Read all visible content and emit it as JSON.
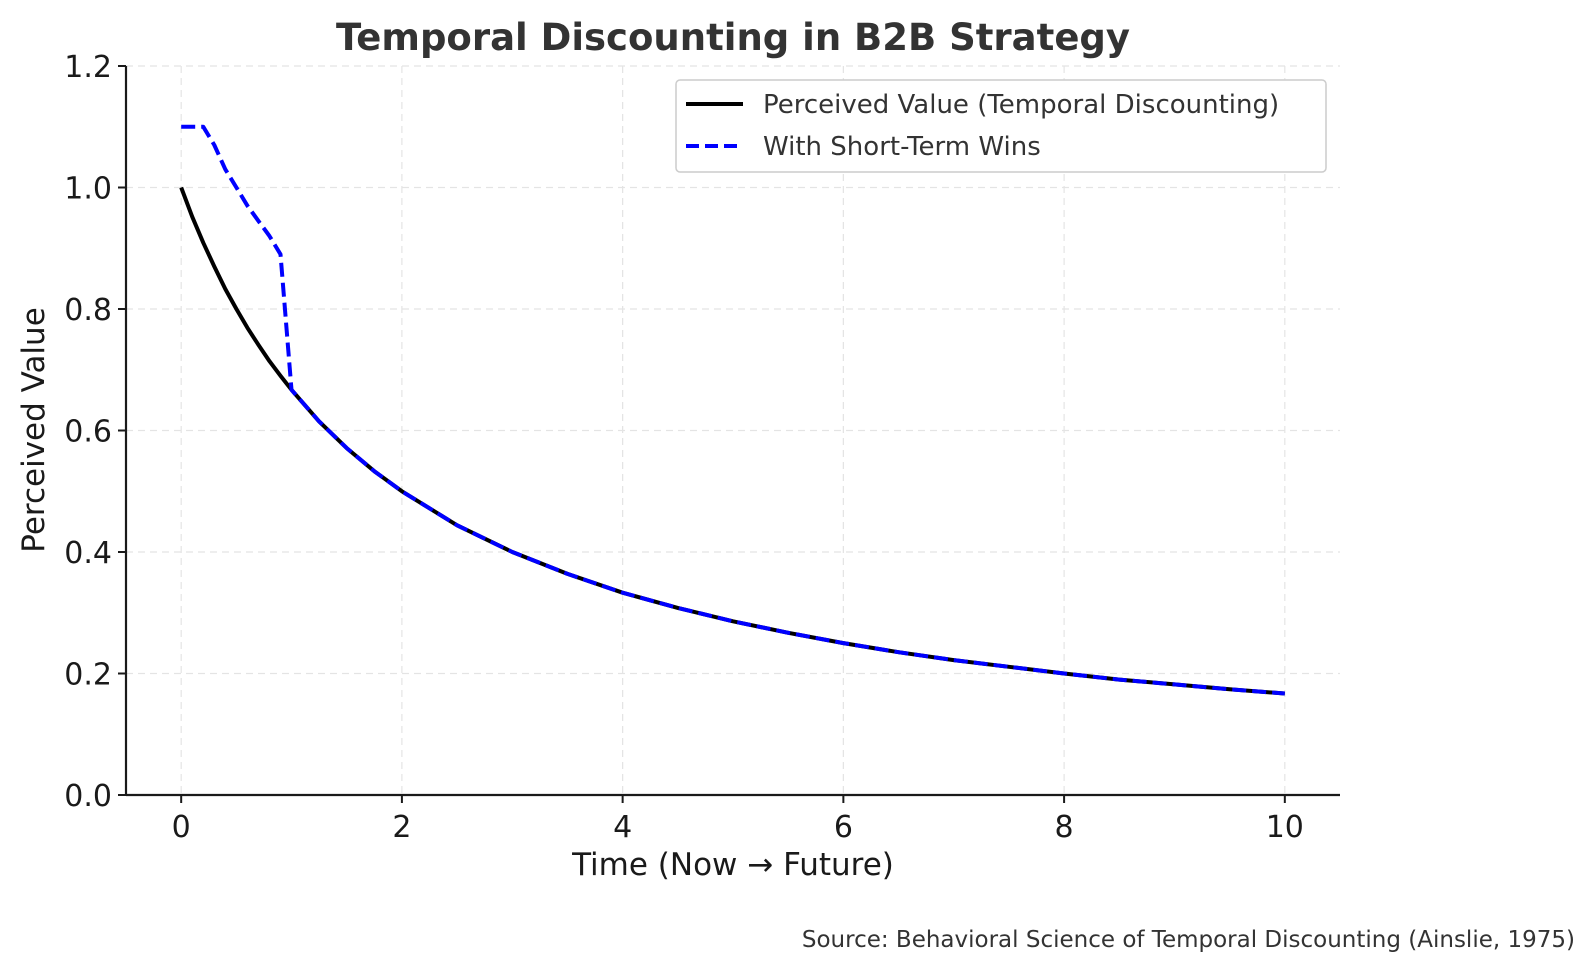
{
  "chart_data": {
    "type": "line",
    "title": "Temporal Discounting in B2B Strategy",
    "xlabel": "Time (Now → Future)",
    "ylabel": "Perceived Value",
    "xlim": [
      -0.5,
      10.5
    ],
    "ylim": [
      0,
      1.2
    ],
    "xticks": [
      0,
      2,
      4,
      6,
      8,
      10
    ],
    "xtick_labels": [
      "0",
      "2",
      "4",
      "6",
      "8",
      "10"
    ],
    "yticks": [
      0,
      0.2,
      0.4,
      0.6,
      0.8,
      1.0,
      1.2
    ],
    "ytick_labels": [
      "0.0",
      "0.2",
      "0.4",
      "0.6",
      "0.8",
      "1.0",
      "1.2"
    ],
    "grid": true,
    "legend_position": "top-right",
    "series": [
      {
        "name": "Perceived Value (Temporal Discounting)",
        "color": "#000000",
        "style": "solid",
        "x": [
          0,
          0.1,
          0.2,
          0.3,
          0.4,
          0.5,
          0.6,
          0.7,
          0.8,
          0.9,
          1.0,
          1.25,
          1.5,
          1.75,
          2.0,
          2.5,
          3.0,
          3.5,
          4.0,
          4.5,
          5.0,
          5.5,
          6.0,
          6.5,
          7.0,
          7.5,
          8.0,
          8.5,
          9.0,
          9.5,
          10.0
        ],
        "y": [
          1.0,
          0.952,
          0.909,
          0.87,
          0.833,
          0.8,
          0.769,
          0.741,
          0.714,
          0.69,
          0.667,
          0.615,
          0.571,
          0.533,
          0.5,
          0.444,
          0.4,
          0.364,
          0.333,
          0.308,
          0.286,
          0.267,
          0.25,
          0.235,
          0.222,
          0.211,
          0.2,
          0.19,
          0.182,
          0.174,
          0.167
        ]
      },
      {
        "name": "With Short-Term Wins",
        "color": "#0000ff",
        "style": "dashed",
        "x": [
          0,
          0.2,
          0.3,
          0.4,
          0.5,
          0.6,
          0.7,
          0.8,
          0.9,
          1.0,
          1.25,
          1.5,
          1.75,
          2.0,
          2.5,
          3.0,
          3.5,
          4.0,
          4.5,
          5.0,
          5.5,
          6.0,
          6.5,
          7.0,
          7.5,
          8.0,
          8.5,
          9.0,
          9.5,
          10.0
        ],
        "y": [
          1.1,
          1.1,
          1.07,
          1.03,
          1.0,
          0.97,
          0.945,
          0.92,
          0.89,
          0.667,
          0.615,
          0.571,
          0.533,
          0.5,
          0.444,
          0.4,
          0.364,
          0.333,
          0.308,
          0.286,
          0.267,
          0.25,
          0.235,
          0.222,
          0.211,
          0.2,
          0.19,
          0.182,
          0.174,
          0.167
        ]
      }
    ]
  },
  "footer": {
    "source": "Source: Behavioral Science of Temporal Discounting (Ainslie, 1975)"
  }
}
